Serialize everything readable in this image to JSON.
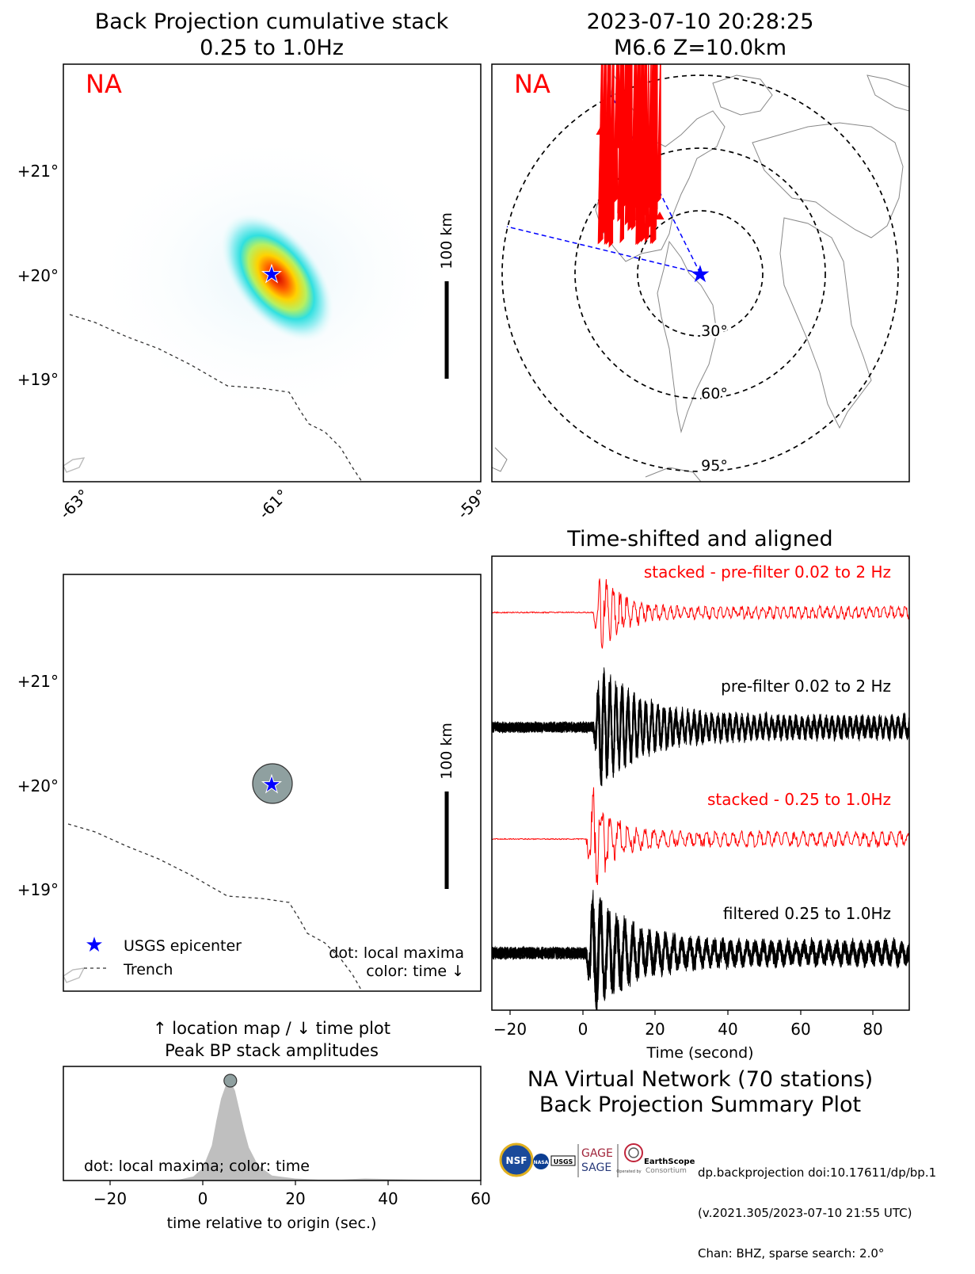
{
  "panels": {
    "bp_map": {
      "title_line1": "Back Projection cumulative stack",
      "title_line2": "0.25 to 1.0Hz",
      "network_tag": "NA",
      "scale_label": "100 km",
      "lat_ticks": [
        "+21°",
        "+20°",
        "+19°"
      ],
      "lon_ticks": [
        "-63°",
        "-61°",
        "-59°"
      ]
    },
    "station_map": {
      "title_line1": "2023-07-10 20:28:25",
      "title_line2": "M6.6 Z=10.0km",
      "network_tag": "NA",
      "distance_rings": [
        "30°",
        "60°",
        "95°"
      ]
    },
    "location_map": {
      "scale_label": "100 km",
      "lat_ticks": [
        "+21°",
        "+20°",
        "+19°"
      ],
      "legend": {
        "epicenter": "USGS epicenter",
        "trench": "Trench"
      },
      "note_line1": "dot: local maxima",
      "note_line2": "color: time ↓"
    },
    "peak_plot": {
      "title_line1": "↑ location map / ↓ time plot",
      "title_line2": "Peak BP stack amplitudes",
      "note": "dot: local maxima; color: time",
      "xlabel": "time relative to origin (sec.)",
      "xticks": [
        "−20",
        "0",
        "20",
        "40",
        "60"
      ]
    },
    "seismograms": {
      "title": "Time-shifted and aligned",
      "trace_labels": [
        "stacked - pre-filter 0.02 to 2 Hz",
        "pre-filter 0.02 to 2 Hz",
        "stacked - 0.25 to 1.0Hz",
        "filtered 0.25 to 1.0Hz"
      ],
      "xlabel": "Time (second)",
      "xticks": [
        "−20",
        "0",
        "20",
        "40",
        "60",
        "80"
      ]
    }
  },
  "summary": {
    "line1": "NA Virtual Network (70 stations)",
    "line2": "Back Projection Summary Plot"
  },
  "logos": {
    "nsf": "NSF",
    "nasa": "NASA",
    "usgs": "USGS",
    "gage": "GAGE",
    "sage": "SAGE",
    "earthscope": "EarthScope",
    "consortium": "Consortium",
    "operated_by": "Operated by"
  },
  "credit": {
    "line1": "dp.backprojection doi:10.17611/dp/bp.1",
    "line2": "(v.2021.305/2023-07-10 21:55 UTC)",
    "line3": "Chan: BHZ, sparse search: 2.0°"
  },
  "colors": {
    "accent_red": "#ff0000",
    "epicenter_blue": "#0000ff",
    "great_circle_blue": "#0000ff",
    "peak_fill": "#bfbfbf",
    "dot_fill": "#8fa0a0"
  },
  "chart_data": [
    {
      "type": "heatmap",
      "title": "Back Projection cumulative stack 0.25 to 1.0Hz",
      "xlabel": "",
      "ylabel": "",
      "xlim": [
        -63.2,
        -59.2
      ],
      "ylim": [
        18.0,
        22.0
      ],
      "peak": {
        "lon": -61.0,
        "lat": 20.0
      },
      "epicenter": {
        "lon": -61.0,
        "lat": 20.0
      },
      "orientation": "northwest-southeast ellipse"
    },
    {
      "type": "scatter",
      "title": "2023-07-10 20:28:25 M6.6 Z=10.0km",
      "stations_count": 70,
      "distance_rings_deg": [
        30,
        60,
        95
      ]
    },
    {
      "type": "scatter",
      "xlim": [
        -63.2,
        -59.2
      ],
      "ylim": [
        18.0,
        22.0
      ],
      "local_maxima": [
        {
          "lon": -61.0,
          "lat": 20.0
        }
      ],
      "epicenter": {
        "lon": -61.0,
        "lat": 20.0
      }
    },
    {
      "type": "area",
      "xlabel": "time relative to origin (sec.)",
      "xlim": [
        -30,
        60
      ],
      "x": [
        -30,
        -10,
        -5,
        -2,
        0,
        2,
        3,
        4,
        5,
        6,
        7,
        8,
        9,
        10,
        12,
        15,
        20,
        25,
        30,
        35,
        40,
        45,
        60
      ],
      "values": [
        0,
        0,
        0.01,
        0.04,
        0.12,
        0.35,
        0.6,
        0.82,
        0.95,
        1.0,
        0.9,
        0.7,
        0.5,
        0.33,
        0.15,
        0.05,
        0.02,
        0.01,
        0.01,
        0.02,
        0.015,
        0.01,
        0
      ],
      "local_maxima": [
        {
          "x": 6,
          "y": 1.0
        }
      ]
    },
    {
      "type": "line",
      "title": "Time-shifted and aligned",
      "xlabel": "Time (second)",
      "xlim": [
        -25,
        90
      ],
      "series": [
        {
          "name": "stacked - pre-filter 0.02 to 2 Hz",
          "onset": 3
        },
        {
          "name": "pre-filter 0.02 to 2 Hz",
          "onset": 3
        },
        {
          "name": "stacked - 0.25 to 1.0Hz",
          "onset": 1
        },
        {
          "name": "filtered 0.25 to 1.0Hz",
          "onset": 1
        }
      ]
    }
  ]
}
